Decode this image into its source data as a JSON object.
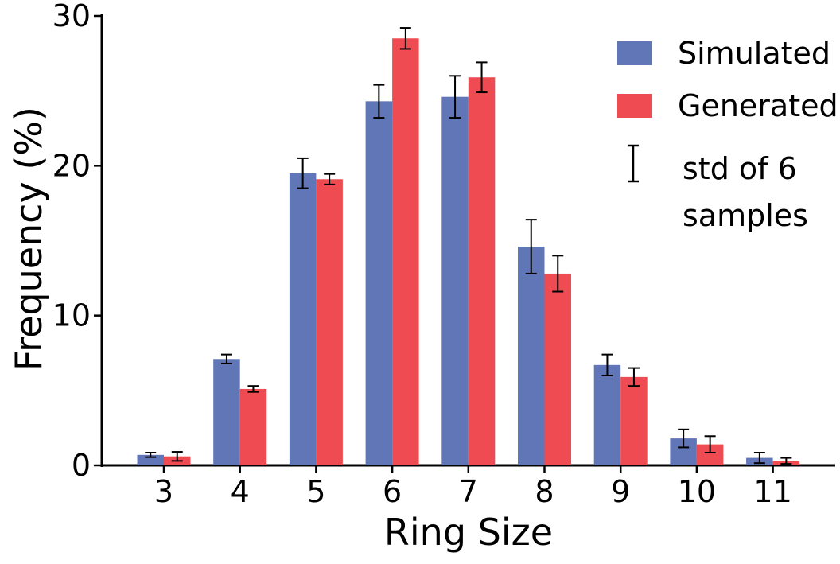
{
  "chart_data": {
    "type": "bar",
    "title": "",
    "xlabel": "Ring Size",
    "ylabel": "Frequency (%)",
    "ylim": [
      0,
      30
    ],
    "yticks": [
      0,
      10,
      20,
      30
    ],
    "categories": [
      "3",
      "4",
      "5",
      "6",
      "7",
      "8",
      "9",
      "10",
      "11"
    ],
    "series": [
      {
        "name": "Simulated",
        "color": "#6176b7",
        "values": [
          0.7,
          7.1,
          19.5,
          24.3,
          24.6,
          14.6,
          6.7,
          1.8,
          0.5
        ],
        "std": [
          0.15,
          0.3,
          1.0,
          1.1,
          1.4,
          1.8,
          0.7,
          0.6,
          0.35
        ]
      },
      {
        "name": "Generated",
        "color": "#ee4c52",
        "values": [
          0.6,
          5.1,
          19.1,
          28.5,
          25.9,
          12.8,
          5.9,
          1.4,
          0.3
        ],
        "std": [
          0.3,
          0.2,
          0.35,
          0.7,
          1.0,
          1.2,
          0.6,
          0.55,
          0.2
        ]
      }
    ],
    "legend": {
      "position": "top-right",
      "errorbar_label_line1": "std of 6",
      "errorbar_label_line2": "samples"
    },
    "grid": false
  }
}
